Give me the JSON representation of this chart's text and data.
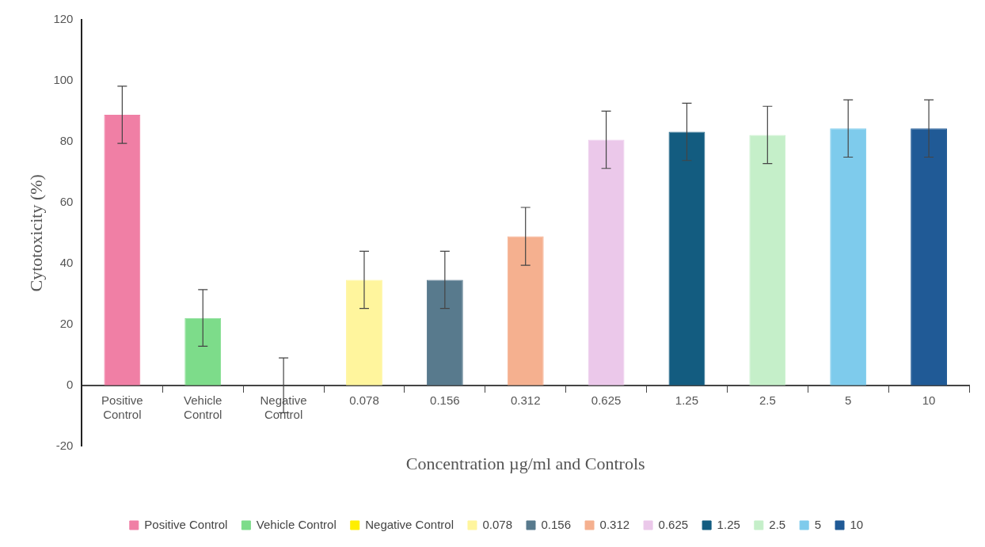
{
  "chart_data": {
    "type": "bar",
    "xlabel": "Concentration µg/ml and Controls",
    "ylabel": "Cytotoxicity (%)",
    "categories": [
      "Positive Control",
      "Vehicle Control",
      "Negative Control",
      "0.078",
      "0.156",
      "0.312",
      "0.625",
      "1.25",
      "2.5",
      "5",
      "10"
    ],
    "series": [
      {
        "name": "Positive Control",
        "color": "#f07fa5",
        "values": [
          88.8,
          null,
          null,
          null,
          null,
          null,
          null,
          null,
          null,
          null,
          null
        ],
        "errors": [
          9.4,
          null,
          null,
          null,
          null,
          null,
          null,
          null,
          null,
          null,
          null
        ]
      },
      {
        "name": "Vehicle Control",
        "color": "#7ddc8a",
        "values": [
          null,
          22.1,
          null,
          null,
          null,
          null,
          null,
          null,
          null,
          null,
          null
        ],
        "errors": [
          null,
          9.3,
          null,
          null,
          null,
          null,
          null,
          null,
          null,
          null,
          null
        ]
      },
      {
        "name": "Negative Control",
        "color": "#ffee00",
        "values": [
          null,
          null,
          0,
          null,
          null,
          null,
          null,
          null,
          null,
          null,
          null
        ],
        "errors": [
          null,
          null,
          9,
          null,
          null,
          null,
          null,
          null,
          null,
          null,
          null
        ]
      },
      {
        "name": "0.078",
        "color": "#fff59d",
        "values": [
          null,
          null,
          null,
          34.6,
          null,
          null,
          null,
          null,
          null,
          null,
          null
        ],
        "errors": [
          null,
          null,
          null,
          9.4,
          null,
          null,
          null,
          null,
          null,
          null,
          null
        ]
      },
      {
        "name": "0.156",
        "color": "#587a8d",
        "values": [
          null,
          null,
          null,
          null,
          34.6,
          null,
          null,
          null,
          null,
          null,
          null
        ],
        "errors": [
          null,
          null,
          null,
          null,
          9.4,
          null,
          null,
          null,
          null,
          null,
          null
        ]
      },
      {
        "name": "0.312",
        "color": "#f5b08f",
        "values": [
          null,
          null,
          null,
          null,
          null,
          48.9,
          null,
          null,
          null,
          null,
          null
        ],
        "errors": [
          null,
          null,
          null,
          null,
          null,
          9.5,
          null,
          null,
          null,
          null,
          null
        ]
      },
      {
        "name": "0.625",
        "color": "#ebc8ea",
        "values": [
          null,
          null,
          null,
          null,
          null,
          null,
          80.6,
          null,
          null,
          null,
          null
        ],
        "errors": [
          null,
          null,
          null,
          null,
          null,
          null,
          9.4,
          null,
          null,
          null,
          null
        ]
      },
      {
        "name": "1.25",
        "color": "#135c80",
        "values": [
          null,
          null,
          null,
          null,
          null,
          null,
          null,
          83.2,
          null,
          null,
          null
        ],
        "errors": [
          null,
          null,
          null,
          null,
          null,
          null,
          null,
          9.4,
          null,
          null,
          null
        ]
      },
      {
        "name": "2.5",
        "color": "#c5efc9",
        "values": [
          null,
          null,
          null,
          null,
          null,
          null,
          null,
          null,
          82.2,
          null,
          null
        ],
        "errors": [
          null,
          null,
          null,
          null,
          null,
          null,
          null,
          null,
          9.4,
          null,
          null
        ]
      },
      {
        "name": "5",
        "color": "#7ecbec",
        "values": [
          null,
          null,
          null,
          null,
          null,
          null,
          null,
          null,
          null,
          84.3,
          null
        ],
        "errors": [
          null,
          null,
          null,
          null,
          null,
          null,
          null,
          null,
          null,
          9.4,
          null
        ]
      },
      {
        "name": "10",
        "color": "#205a96",
        "values": [
          null,
          null,
          null,
          null,
          null,
          null,
          null,
          null,
          null,
          null,
          84.3
        ],
        "errors": [
          null,
          null,
          null,
          null,
          null,
          null,
          null,
          null,
          null,
          null,
          9.4
        ]
      }
    ],
    "ylim": [
      -20,
      120
    ],
    "yticks": [
      -20,
      0,
      20,
      40,
      60,
      80,
      100,
      120
    ],
    "grid": false,
    "legend": "bottom"
  }
}
